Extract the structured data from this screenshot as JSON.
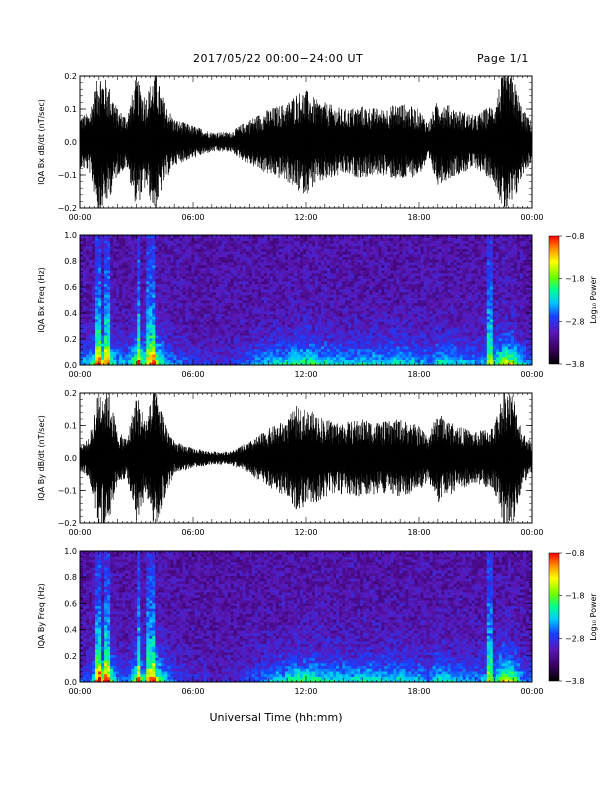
{
  "header": {
    "title": "2017/05/22  00:00−24:00 UT",
    "page": "Page 1/1"
  },
  "colors": {
    "trace": "#000000",
    "spectrogram_background": "#2a0a3a",
    "colormap": [
      "#000000",
      "#3a0060",
      "#5a18b8",
      "#1840ff",
      "#00c8ff",
      "#00ff90",
      "#70ff00",
      "#ffff00",
      "#ff9000",
      "#ff0000"
    ]
  },
  "chart_data": [
    {
      "type": "line",
      "id": "bx_timeseries",
      "ylabel": "IQA Bx dB/dt (nT/sec)",
      "xlabel": "",
      "ylim": [
        -0.2,
        0.2
      ],
      "xlim_hours": [
        0,
        24
      ],
      "yticks": [
        "0.2",
        "0.1",
        "0.0",
        "−0.1",
        "−0.2"
      ],
      "xticks": [
        "00:00",
        "06:00",
        "12:00",
        "18:00",
        "00:00"
      ],
      "envelope": {
        "hours": [
          0,
          0.5,
          1,
          1.5,
          2,
          2.5,
          3,
          3.5,
          4,
          4.5,
          5,
          6,
          7,
          8,
          9,
          10,
          11,
          11.5,
          12,
          12.5,
          13,
          14,
          15,
          16,
          17,
          18,
          18.5,
          19,
          20,
          21,
          21.5,
          22,
          22.5,
          23,
          23.5,
          24
        ],
        "amplitude": [
          0.08,
          0.09,
          0.22,
          0.18,
          0.1,
          0.08,
          0.2,
          0.14,
          0.22,
          0.12,
          0.07,
          0.05,
          0.03,
          0.03,
          0.07,
          0.1,
          0.12,
          0.15,
          0.16,
          0.13,
          0.12,
          0.1,
          0.11,
          0.1,
          0.12,
          0.1,
          0.06,
          0.13,
          0.1,
          0.08,
          0.1,
          0.12,
          0.22,
          0.2,
          0.1,
          0.06
        ]
      }
    },
    {
      "type": "heatmap",
      "id": "bx_spectrogram",
      "ylabel": "IQA Bx Freq (Hz)",
      "ylim": [
        0.0,
        1.0
      ],
      "xlim_hours": [
        0,
        24
      ],
      "yticks": [
        "1.0",
        "0.8",
        "0.6",
        "0.4",
        "0.2",
        "0.0"
      ],
      "xticks": [
        "00:00",
        "06:00",
        "12:00",
        "18:00",
        "00:00"
      ],
      "colorbar": {
        "label": "Log₁₀ Power",
        "range": [
          -3.8,
          -0.8
        ],
        "ticks": [
          "−0.8",
          "−1.8",
          "−2.8",
          "−3.8"
        ]
      },
      "bursts_hours": [
        1.0,
        1.4,
        3.1,
        3.6,
        3.9,
        21.8
      ]
    },
    {
      "type": "line",
      "id": "by_timeseries",
      "ylabel": "IQA By dB/dt (nT/sec)",
      "xlabel": "",
      "ylim": [
        -0.2,
        0.2
      ],
      "xlim_hours": [
        0,
        24
      ],
      "yticks": [
        "0.2",
        "0.1",
        "0.0",
        "−0.1",
        "−0.2"
      ],
      "xticks": [
        "00:00",
        "06:00",
        "12:00",
        "18:00",
        "00:00"
      ],
      "envelope": {
        "hours": [
          0,
          0.5,
          1,
          1.5,
          2,
          2.5,
          3,
          3.5,
          4,
          4.5,
          5,
          6,
          7,
          8,
          9,
          10,
          11,
          11.5,
          12,
          12.5,
          13,
          14,
          15,
          16,
          17,
          18,
          18.5,
          19,
          20,
          21,
          21.5,
          22,
          22.5,
          23,
          23.5,
          24
        ],
        "amplitude": [
          0.04,
          0.06,
          0.22,
          0.22,
          0.08,
          0.06,
          0.2,
          0.12,
          0.22,
          0.12,
          0.05,
          0.03,
          0.02,
          0.02,
          0.05,
          0.09,
          0.12,
          0.16,
          0.15,
          0.14,
          0.12,
          0.11,
          0.12,
          0.11,
          0.12,
          0.1,
          0.07,
          0.14,
          0.1,
          0.08,
          0.09,
          0.1,
          0.22,
          0.2,
          0.08,
          0.05
        ]
      }
    },
    {
      "type": "heatmap",
      "id": "by_spectrogram",
      "ylabel": "IQA By Freq (Hz)",
      "ylim": [
        0.0,
        1.0
      ],
      "xlim_hours": [
        0,
        24
      ],
      "yticks": [
        "1.0",
        "0.8",
        "0.6",
        "0.4",
        "0.2",
        "0.0"
      ],
      "xticks": [
        "00:00",
        "06:00",
        "12:00",
        "18:00",
        "00:00"
      ],
      "colorbar": {
        "label": "Log₁₀ Power",
        "range": [
          -3.8,
          -0.8
        ],
        "ticks": [
          "−0.8",
          "−1.8",
          "−2.8",
          "−3.8"
        ]
      },
      "bursts_hours": [
        1.0,
        1.4,
        3.1,
        3.6,
        3.9,
        21.8
      ]
    }
  ],
  "footer": {
    "xlabel": "Universal Time (hh:mm)"
  }
}
